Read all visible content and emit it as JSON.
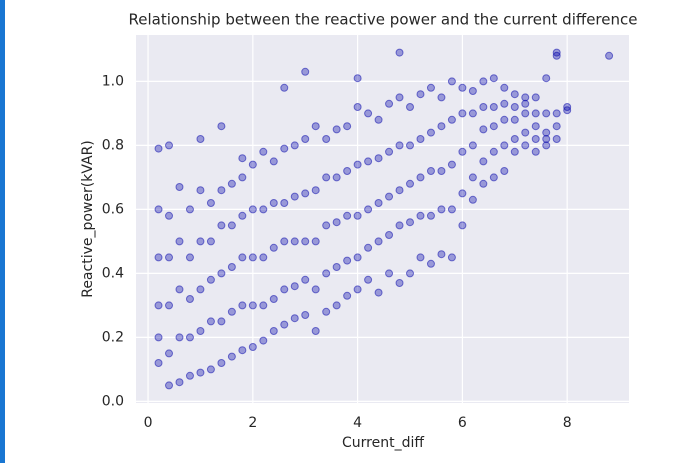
{
  "chart_data": {
    "type": "scatter",
    "title": "Relationship between the reactive power and the current difference",
    "xlabel": "Current_diff",
    "ylabel": "Reactive_power(kVAR)",
    "color": "#0000aa",
    "grid": true,
    "xlim": [
      -0.23,
      9.18
    ],
    "ylim": [
      -0.005,
      1.145
    ],
    "xticks": [
      0,
      2,
      4,
      6,
      8
    ],
    "yticks": [
      {
        "value": 0,
        "label": "0.0"
      },
      0.2,
      0.4,
      0.6,
      0.8,
      {
        "value": 1,
        "label": "1.0"
      }
    ],
    "x": [
      0.2,
      0.2,
      0.2,
      0.2,
      0.2,
      0.4,
      0.4,
      0.4,
      0.4,
      0.4,
      0.6,
      0.6,
      0.6,
      0.6,
      0.6,
      0.8,
      0.8,
      0.8,
      0.8,
      0.8,
      1.0,
      1.0,
      1.0,
      1.0,
      1.0,
      1.2,
      1.2,
      1.2,
      1.2,
      1.2,
      1.4,
      1.4,
      1.4,
      1.4,
      1.4,
      1.6,
      1.6,
      1.6,
      1.6,
      1.6,
      1.8,
      1.8,
      1.8,
      1.8,
      1.8,
      2.0,
      2.0,
      2.0,
      2.0,
      2.0,
      2.2,
      2.2,
      2.2,
      2.2,
      2.2,
      2.4,
      2.4,
      2.4,
      2.4,
      2.4,
      2.6,
      2.6,
      2.6,
      2.6,
      2.6,
      2.8,
      2.8,
      2.8,
      2.8,
      2.8,
      3.0,
      3.0,
      3.0,
      3.0,
      3.0,
      3.2,
      3.2,
      3.2,
      3.2,
      3.2,
      3.4,
      3.4,
      3.4,
      3.4,
      3.4,
      3.6,
      3.6,
      3.6,
      3.6,
      3.6,
      3.8,
      3.8,
      3.8,
      3.8,
      3.8,
      4.0,
      4.0,
      4.0,
      4.0,
      4.0,
      4.2,
      4.2,
      4.2,
      4.2,
      4.2,
      4.4,
      4.4,
      4.4,
      4.4,
      4.4,
      4.6,
      4.6,
      4.6,
      4.6,
      4.6,
      4.8,
      4.8,
      4.8,
      4.8,
      4.8,
      5.0,
      5.0,
      5.0,
      5.0,
      5.0,
      5.2,
      5.2,
      5.2,
      5.2,
      5.2,
      5.4,
      5.4,
      5.4,
      5.4,
      5.4,
      5.6,
      5.6,
      5.6,
      5.6,
      5.6,
      5.8,
      5.8,
      5.8,
      5.8,
      5.8,
      6.0,
      6.0,
      6.0,
      6.0,
      6.0,
      6.2,
      6.2,
      6.2,
      6.2,
      6.2,
      6.4,
      6.4,
      6.4,
      6.4,
      6.4,
      6.6,
      6.6,
      6.6,
      6.6,
      6.6,
      6.8,
      6.8,
      6.8,
      6.8,
      6.8,
      7.0,
      7.0,
      7.0,
      7.0,
      7.0,
      7.2,
      7.2,
      7.2,
      7.2,
      7.2,
      7.4,
      7.4,
      7.4,
      7.4,
      7.4,
      7.6,
      7.6,
      7.6,
      7.6,
      7.6,
      7.8,
      7.8,
      7.8,
      7.8,
      7.8,
      8.0,
      8.0,
      8.8,
      0.2,
      0.4,
      1.0,
      1.4,
      2.6,
      3.0,
      4.0,
      4.8,
      1.8
    ],
    "y": [
      0.12,
      0.2,
      0.3,
      0.45,
      0.6,
      0.05,
      0.15,
      0.3,
      0.45,
      0.58,
      0.06,
      0.2,
      0.35,
      0.5,
      0.67,
      0.08,
      0.2,
      0.32,
      0.45,
      0.6,
      0.09,
      0.22,
      0.35,
      0.5,
      0.66,
      0.1,
      0.25,
      0.38,
      0.5,
      0.62,
      0.12,
      0.25,
      0.4,
      0.55,
      0.66,
      0.14,
      0.28,
      0.42,
      0.55,
      0.68,
      0.16,
      0.3,
      0.45,
      0.58,
      0.7,
      0.17,
      0.3,
      0.45,
      0.6,
      0.74,
      0.19,
      0.3,
      0.45,
      0.6,
      0.78,
      0.22,
      0.32,
      0.48,
      0.62,
      0.75,
      0.24,
      0.35,
      0.5,
      0.62,
      0.79,
      0.26,
      0.36,
      0.5,
      0.64,
      0.8,
      0.27,
      0.38,
      0.5,
      0.65,
      0.82,
      0.22,
      0.35,
      0.5,
      0.66,
      0.86,
      0.28,
      0.4,
      0.55,
      0.7,
      0.82,
      0.3,
      0.42,
      0.56,
      0.7,
      0.85,
      0.33,
      0.44,
      0.58,
      0.72,
      0.86,
      0.35,
      0.45,
      0.58,
      0.74,
      0.92,
      0.38,
      0.48,
      0.6,
      0.75,
      0.9,
      0.34,
      0.5,
      0.62,
      0.76,
      0.88,
      0.4,
      0.52,
      0.64,
      0.78,
      0.93,
      0.37,
      0.55,
      0.66,
      0.8,
      0.95,
      0.4,
      0.56,
      0.68,
      0.8,
      0.92,
      0.45,
      0.58,
      0.7,
      0.82,
      0.96,
      0.43,
      0.58,
      0.72,
      0.84,
      0.98,
      0.46,
      0.6,
      0.72,
      0.86,
      0.95,
      0.45,
      0.6,
      0.74,
      0.88,
      1.0,
      0.55,
      0.65,
      0.78,
      0.9,
      0.98,
      0.63,
      0.7,
      0.8,
      0.9,
      0.97,
      0.68,
      0.75,
      0.85,
      0.92,
      1.0,
      0.7,
      0.78,
      0.86,
      0.92,
      1.01,
      0.72,
      0.8,
      0.88,
      0.93,
      0.98,
      0.78,
      0.82,
      0.88,
      0.92,
      0.96,
      0.8,
      0.84,
      0.9,
      0.93,
      0.95,
      0.78,
      0.82,
      0.86,
      0.9,
      0.95,
      0.8,
      0.84,
      0.9,
      1.01,
      0.82,
      0.82,
      0.86,
      0.9,
      1.08,
      1.09,
      0.91,
      0.92,
      1.08,
      0.79,
      0.8,
      0.82,
      0.86,
      0.98,
      1.03,
      1.01,
      1.09,
      0.76
    ]
  }
}
